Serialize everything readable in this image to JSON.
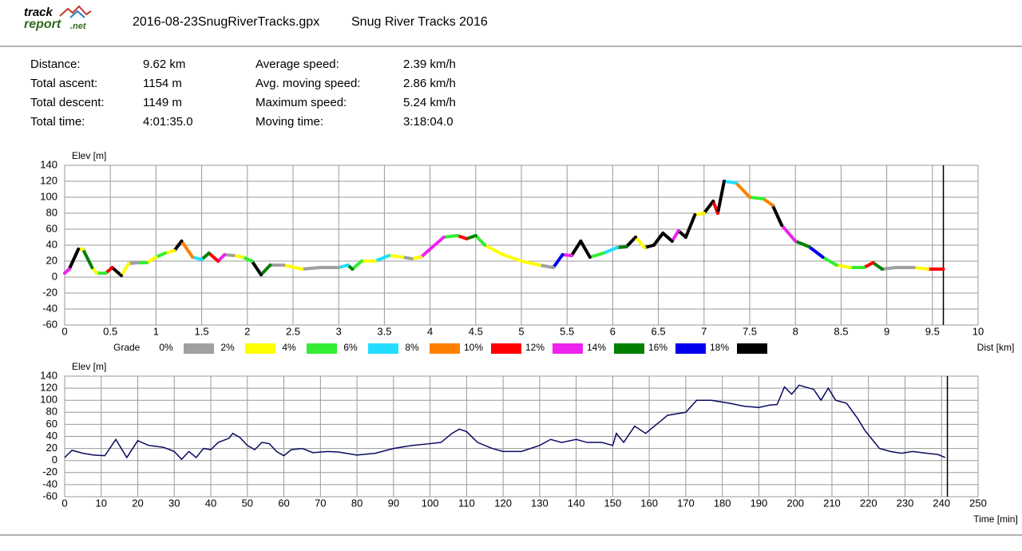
{
  "header": {
    "logo_top": "track",
    "logo_bottom": "report",
    "logo_suffix": ".net",
    "file": "2016-08-23SnugRiverTracks.gpx",
    "name": "Snug River Tracks 2016"
  },
  "stats": [
    {
      "label": "Distance:",
      "value": "9.62 km"
    },
    {
      "label": "Total ascent:",
      "value": "1154 m"
    },
    {
      "label": "Total descent:",
      "value": "1149 m"
    },
    {
      "label": "Total time:",
      "value": "4:01:35.0"
    },
    {
      "label": "Average speed:",
      "value": "2.39 km/h"
    },
    {
      "label": "Avg. moving speed:",
      "value": "2.86 km/h"
    },
    {
      "label": "Maximum speed:",
      "value": "5.24 km/h"
    },
    {
      "label": "Moving time:",
      "value": "3:18:04.0"
    }
  ],
  "chart_data": [
    {
      "type": "grade-line",
      "ylabel": "Elev [m]",
      "xlabel": "Dist [km]",
      "xlim": [
        0,
        10
      ],
      "xticks": [
        0,
        0.5,
        1,
        1.5,
        2,
        2.5,
        3,
        3.5,
        4,
        4.5,
        5,
        5.5,
        6,
        6.5,
        7,
        7.5,
        8,
        8.5,
        9,
        9.5,
        10
      ],
      "ylim": [
        -60,
        140
      ],
      "yticks": [
        -60,
        -40,
        -20,
        0,
        20,
        40,
        60,
        80,
        100,
        120,
        140
      ],
      "grid": true,
      "marker_x": 9.62,
      "legend": {
        "title": "Grade",
        "labels": [
          "0%",
          "2%",
          "4%",
          "6%",
          "8%",
          "10%",
          "12%",
          "14%",
          "16%",
          "18%"
        ],
        "colors": [
          "#a0a0a0",
          "#ffff00",
          "#33ee33",
          "#22ddff",
          "#ff8000",
          "#ff0000",
          "#ee22ee",
          "#008000",
          "#0000ee",
          "#000000"
        ]
      },
      "series": [
        {
          "x": [
            0,
            0.05,
            0.15,
            0.2,
            0.3,
            0.35,
            0.45,
            0.52,
            0.62,
            0.7,
            0.8,
            0.9,
            1.0,
            1.1,
            1.2,
            1.28,
            1.4,
            1.5,
            1.58,
            1.68,
            1.75,
            1.85,
            1.95,
            2.05,
            2.15,
            2.25,
            2.4,
            2.6,
            2.8,
            3.0,
            3.1,
            3.15,
            3.25,
            3.4,
            3.55,
            3.7,
            3.8,
            3.9,
            4.0,
            4.15,
            4.3,
            4.4,
            4.5,
            4.6,
            4.8,
            5.0,
            5.2,
            5.35,
            5.45,
            5.55,
            5.65,
            5.75,
            5.9,
            6.05,
            6.15,
            6.25,
            6.35,
            6.45,
            6.55,
            6.65,
            6.72,
            6.8,
            6.9,
            7.0,
            7.1,
            7.15,
            7.22,
            7.35,
            7.5,
            7.65,
            7.75,
            7.85,
            8.0,
            8.15,
            8.3,
            8.45,
            8.6,
            8.75,
            8.85,
            8.95,
            9.1,
            9.3,
            9.45,
            9.62
          ],
          "values": [
            5,
            10,
            35,
            35,
            12,
            5,
            5,
            12,
            2,
            17,
            18,
            18,
            25,
            30,
            33,
            45,
            25,
            22,
            30,
            20,
            28,
            27,
            25,
            20,
            3,
            15,
            15,
            10,
            12,
            12,
            15,
            10,
            20,
            20,
            27,
            25,
            23,
            25,
            35,
            50,
            52,
            48,
            52,
            40,
            28,
            20,
            15,
            12,
            28,
            27,
            45,
            25,
            30,
            37,
            38,
            50,
            37,
            40,
            55,
            45,
            58,
            50,
            78,
            80,
            95,
            80,
            120,
            118,
            100,
            98,
            90,
            65,
            45,
            38,
            25,
            15,
            12,
            12,
            18,
            10,
            12,
            12,
            10,
            10
          ],
          "colors": [
            "#ee22ee",
            "#ee22ee",
            "#000000",
            "#ffff00",
            "#008000",
            "#ffff00",
            "#33ee33",
            "#ff0000",
            "#000000",
            "#ffff00",
            "#a0a0a0",
            "#33ee33",
            "#ffff00",
            "#33ee33",
            "#ffff00",
            "#000000",
            "#ff8000",
            "#22ddff",
            "#008000",
            "#ff0000",
            "#ee22ee",
            "#a0a0a0",
            "#ffff00",
            "#33ee33",
            "#000000",
            "#008000",
            "#a0a0a0",
            "#ffff00",
            "#a0a0a0",
            "#a0a0a0",
            "#22ddff",
            "#008000",
            "#33ee33",
            "#ffff00",
            "#22ddff",
            "#ffff00",
            "#a0a0a0",
            "#ffff00",
            "#ee22ee",
            "#ee22ee",
            "#33ee33",
            "#ff0000",
            "#008000",
            "#33ee33",
            "#ffff00",
            "#ffff00",
            "#ffff00",
            "#a0a0a0",
            "#0000ee",
            "#ee22ee",
            "#000000",
            "#000000",
            "#33ee33",
            "#22ddff",
            "#008000",
            "#000000",
            "#ffff00",
            "#000000",
            "#000000",
            "#000000",
            "#ee22ee",
            "#000000",
            "#000000",
            "#ffff00",
            "#000000",
            "#ff0000",
            "#000000",
            "#22ddff",
            "#ff8000",
            "#33ee33",
            "#ff8000",
            "#000000",
            "#ee22ee",
            "#008000",
            "#0000ee",
            "#33ee33",
            "#ffff00",
            "#33ee33",
            "#ff0000",
            "#008000",
            "#a0a0a0",
            "#a0a0a0",
            "#ffff00",
            "#ff0000"
          ]
        }
      ]
    },
    {
      "type": "line",
      "ylabel": "Elev [m]",
      "xlabel": "Time [min]",
      "xlim": [
        0,
        250
      ],
      "xticks": [
        0,
        10,
        20,
        30,
        40,
        50,
        60,
        70,
        80,
        90,
        100,
        110,
        120,
        130,
        140,
        150,
        160,
        170,
        180,
        190,
        200,
        210,
        220,
        230,
        240,
        250
      ],
      "ylim": [
        -60,
        140
      ],
      "yticks": [
        -60,
        -40,
        -20,
        0,
        20,
        40,
        60,
        80,
        100,
        120,
        140
      ],
      "grid": true,
      "marker_x": 241.6,
      "series": [
        {
          "color": "#0a0a60",
          "x": [
            0,
            2,
            5,
            8,
            11,
            14,
            17,
            20,
            23,
            27,
            30,
            32,
            34,
            36,
            38,
            40,
            42,
            45,
            46,
            48,
            50,
            52,
            54,
            56,
            58,
            60,
            62,
            65,
            68,
            72,
            75,
            80,
            85,
            90,
            95,
            100,
            103,
            106,
            108,
            110,
            113,
            117,
            120,
            125,
            130,
            133,
            136,
            140,
            143,
            147,
            150,
            151,
            153,
            156,
            159,
            162,
            165,
            170,
            173,
            177,
            182,
            186,
            190,
            193,
            195,
            197,
            199,
            201,
            205,
            207,
            209,
            211,
            214,
            217,
            219,
            221,
            223,
            226,
            229,
            232,
            236,
            239,
            241
          ],
          "values": [
            5,
            17,
            12,
            9,
            8,
            35,
            5,
            33,
            25,
            22,
            15,
            2,
            15,
            5,
            20,
            18,
            30,
            37,
            45,
            38,
            25,
            18,
            30,
            28,
            15,
            8,
            18,
            20,
            13,
            15,
            14,
            9,
            12,
            20,
            25,
            28,
            30,
            45,
            52,
            48,
            30,
            20,
            15,
            15,
            25,
            35,
            30,
            35,
            30,
            30,
            25,
            45,
            30,
            57,
            45,
            60,
            75,
            80,
            100,
            100,
            95,
            90,
            88,
            92,
            93,
            122,
            110,
            125,
            118,
            100,
            120,
            100,
            95,
            70,
            50,
            35,
            20,
            15,
            12,
            15,
            12,
            10,
            5
          ]
        }
      ]
    }
  ]
}
